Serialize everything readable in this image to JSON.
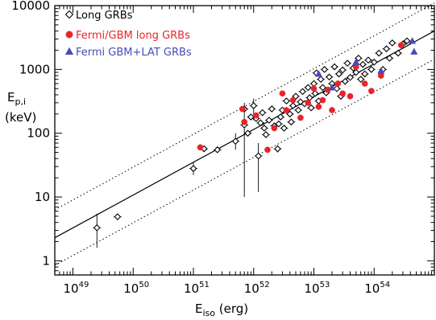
{
  "chart_data": {
    "type": "scatter",
    "x_scale": "log",
    "y_scale": "log",
    "xlim": [
      5e+48,
      1e+55
    ],
    "ylim": [
      0.6,
      10000
    ],
    "xlabel": {
      "main": "E",
      "sub": "iso",
      "unit": " (erg)"
    },
    "ylabel": {
      "main": "E",
      "sub": "p,i",
      "unit": "(keV)"
    },
    "x_ticks": [
      {
        "value": 1e+49,
        "base": "10",
        "exp": "49"
      },
      {
        "value": 1e+50,
        "base": "10",
        "exp": "50"
      },
      {
        "value": 1e+51,
        "base": "10",
        "exp": "51"
      },
      {
        "value": 1e+52,
        "base": "10",
        "exp": "52"
      },
      {
        "value": 1e+53,
        "base": "10",
        "exp": "53"
      },
      {
        "value": 1e+54,
        "base": "10",
        "exp": "54"
      }
    ],
    "y_ticks": [
      {
        "value": 1,
        "label": "1"
      },
      {
        "value": 10,
        "label": "10"
      },
      {
        "value": 100,
        "label": "100"
      },
      {
        "value": 1000,
        "label": "1000"
      },
      {
        "value": 10000,
        "label": "10000"
      }
    ],
    "legend": {
      "position": "top-left",
      "entries": [
        {
          "label": "Long GRBs",
          "marker": "diamond-open",
          "color": "#000000"
        },
        {
          "label": "Fermi/GBM long GRBs",
          "marker": "circle-filled",
          "color": "#e8242a"
        },
        {
          "label": "Fermi GBM+LAT GRBs",
          "marker": "triangle-filled",
          "color": "#4a4ab5"
        }
      ]
    },
    "fit": {
      "description": "best-fit power law with ±2σ scatter lines",
      "line": [
        [
          5e+48,
          2.3
        ],
        [
          1e+55,
          4000
        ]
      ],
      "upper": [
        [
          5e+48,
          6.3
        ],
        [
          1e+55,
          11000
        ]
      ],
      "lower": [
        [
          5e+48,
          0.85
        ],
        [
          1e+55,
          1450
        ]
      ]
    },
    "series": [
      {
        "name": "Long GRBs",
        "marker": "diamond-open",
        "color": "#000000",
        "points": [
          [
            2.5e+49,
            3.3,
            1.6,
            5.5
          ],
          [
            5.5e+49,
            4.9,
            null,
            null
          ],
          [
            1e+51,
            28,
            22,
            35
          ],
          [
            1.5e+51,
            57,
            null,
            null
          ],
          [
            2.5e+51,
            55,
            null,
            null
          ],
          [
            5e+51,
            75,
            55,
            100
          ],
          [
            7e+51,
            135,
            10,
            200
          ],
          [
            7e+51,
            240,
            200,
            300
          ],
          [
            8e+51,
            100,
            null,
            null
          ],
          [
            9e+51,
            180,
            null,
            null
          ],
          [
            1e+52,
            270,
            160,
            350
          ],
          [
            1.1e+52,
            170,
            null,
            null
          ],
          [
            1.2e+52,
            44,
            12,
            70
          ],
          [
            1.3e+52,
            145,
            null,
            null
          ],
          [
            1.4e+52,
            210,
            null,
            null
          ],
          [
            1.5e+52,
            120,
            null,
            null
          ],
          [
            1.6e+52,
            95,
            null,
            null
          ],
          [
            1.8e+52,
            160,
            null,
            null
          ],
          [
            2e+52,
            240,
            null,
            null
          ],
          [
            2.2e+52,
            130,
            null,
            null
          ],
          [
            2.5e+52,
            57,
            50,
            65
          ],
          [
            2.6e+52,
            140,
            null,
            null
          ],
          [
            2.8e+52,
            180,
            null,
            null
          ],
          [
            3e+52,
            230,
            null,
            null
          ],
          [
            3.2e+52,
            120,
            null,
            null
          ],
          [
            3.5e+52,
            320,
            null,
            null
          ],
          [
            4e+52,
            200,
            null,
            null
          ],
          [
            4.2e+52,
            150,
            null,
            null
          ],
          [
            4.5e+52,
            270,
            null,
            null
          ],
          [
            5e+52,
            380,
            null,
            null
          ],
          [
            5.5e+52,
            230,
            null,
            null
          ],
          [
            6e+52,
            310,
            null,
            null
          ],
          [
            6.5e+52,
            450,
            null,
            null
          ],
          [
            7e+52,
            290,
            null,
            null
          ],
          [
            8e+52,
            520,
            null,
            null
          ],
          [
            8.5e+52,
            360,
            null,
            null
          ],
          [
            9e+52,
            250,
            null,
            null
          ],
          [
            1e+53,
            600,
            null,
            null
          ],
          [
            1.05e+53,
            420,
            null,
            null
          ],
          [
            1.1e+53,
            880,
            null,
            null
          ],
          [
            1.2e+53,
            320,
            null,
            null
          ],
          [
            1.3e+53,
            700,
            null,
            null
          ],
          [
            1.4e+53,
            520,
            null,
            null
          ],
          [
            1.5e+53,
            1000,
            null,
            null
          ],
          [
            1.6e+53,
            430,
            null,
            null
          ],
          [
            1.8e+53,
            760,
            null,
            null
          ],
          [
            2e+53,
            600,
            null,
            null
          ],
          [
            2.2e+53,
            1100,
            null,
            null
          ],
          [
            2.4e+53,
            500,
            null,
            null
          ],
          [
            2.6e+53,
            850,
            null,
            null
          ],
          [
            2.8e+53,
            380,
            null,
            null
          ],
          [
            3e+53,
            980,
            null,
            null
          ],
          [
            3.3e+53,
            650,
            null,
            null
          ],
          [
            3.6e+53,
            1250,
            null,
            null
          ],
          [
            4e+53,
            750,
            null,
            null
          ],
          [
            4.5e+53,
            1050,
            null,
            null
          ],
          [
            5e+53,
            900,
            null,
            null
          ],
          [
            5.5e+53,
            1500,
            null,
            null
          ],
          [
            6e+53,
            700,
            null,
            null
          ],
          [
            6.5e+53,
            1200,
            null,
            null
          ],
          [
            7e+53,
            850,
            null,
            null
          ],
          [
            8e+53,
            1400,
            null,
            null
          ],
          [
            9e+53,
            1000,
            null,
            null
          ],
          [
            1e+54,
            1300,
            null,
            null
          ],
          [
            1.2e+54,
            1800,
            null,
            null
          ],
          [
            1.4e+54,
            1000,
            null,
            null
          ],
          [
            1.6e+54,
            2100,
            null,
            null
          ],
          [
            1.8e+54,
            1500,
            null,
            null
          ],
          [
            2e+54,
            2600,
            null,
            null
          ],
          [
            2.5e+54,
            1800,
            null,
            null
          ],
          [
            3e+54,
            2500,
            null,
            null
          ],
          [
            3.5e+54,
            2800,
            null,
            null
          ]
        ]
      },
      {
        "name": "Fermi/GBM long GRBs",
        "marker": "circle-filled",
        "color": "#e8242a",
        "points": [
          [
            1.3e+51,
            60
          ],
          [
            6.5e+51,
            240
          ],
          [
            7e+51,
            150
          ],
          [
            1.1e+52,
            190
          ],
          [
            1.7e+52,
            55
          ],
          [
            2.2e+52,
            120
          ],
          [
            3e+52,
            420
          ],
          [
            3.5e+52,
            230
          ],
          [
            4.5e+52,
            330
          ],
          [
            6e+52,
            175
          ],
          [
            8e+52,
            300
          ],
          [
            1e+53,
            500
          ],
          [
            1.2e+53,
            260
          ],
          [
            1.4e+53,
            330
          ],
          [
            1.7e+53,
            480
          ],
          [
            2e+53,
            230
          ],
          [
            2.5e+53,
            600
          ],
          [
            3e+53,
            420
          ],
          [
            4e+53,
            380
          ],
          [
            5e+53,
            1100
          ],
          [
            7e+53,
            600
          ],
          [
            9e+53,
            460
          ],
          [
            1.3e+54,
            800
          ],
          [
            2.8e+54,
            2400
          ]
        ]
      },
      {
        "name": "Fermi GBM+LAT GRBs",
        "marker": "triangle-filled",
        "color": "#4a4ab5",
        "points": [
          [
            1.2e+53,
            850
          ],
          [
            2e+53,
            520
          ],
          [
            5e+53,
            1300
          ],
          [
            1.3e+54,
            950
          ],
          [
            4.3e+54,
            2800
          ],
          [
            4.6e+54,
            1900
          ]
        ]
      }
    ]
  }
}
